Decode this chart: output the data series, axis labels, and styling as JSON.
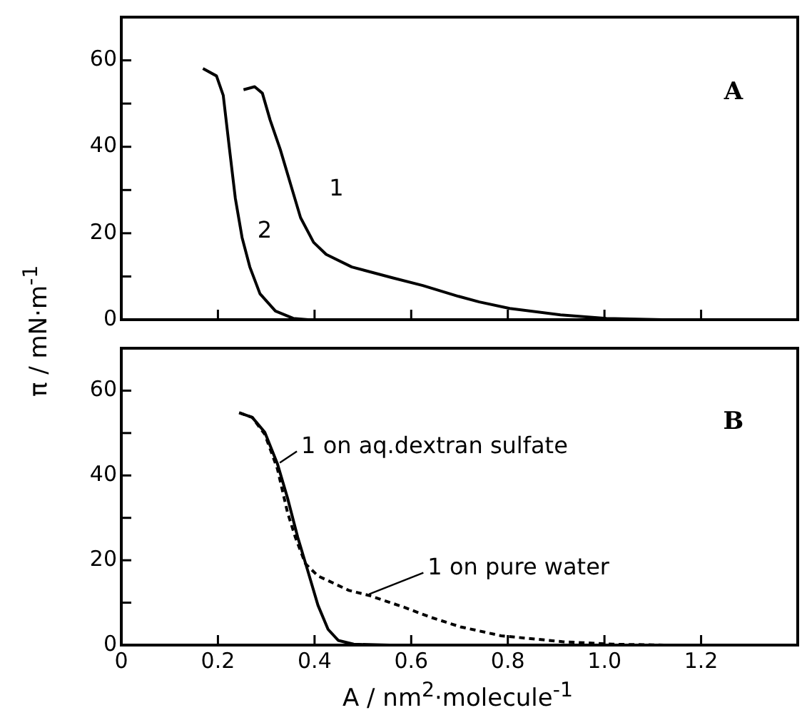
{
  "chart_data": [
    {
      "type": "line",
      "ylabel": "π / mN·m$^{-1}$",
      "xlim": [
        0,
        1.4
      ],
      "ylim": [
        0,
        70
      ],
      "xticks": [
        {
          "value": 0,
          "label": null
        },
        {
          "value": 0.2,
          "label": null
        },
        {
          "value": 0.4,
          "label": null
        },
        {
          "value": 0.6,
          "label": null
        },
        {
          "value": 0.8,
          "label": null
        },
        {
          "value": 1,
          "label": null
        },
        {
          "value": 1.2,
          "label": null
        }
      ],
      "yticks": [
        0,
        {
          "value": 10,
          "label": null
        },
        20,
        {
          "value": 30,
          "label": null
        },
        40,
        {
          "value": 50,
          "label": null
        },
        60
      ],
      "tick_labels": "y",
      "legend": false,
      "grid": false,
      "marker": "none",
      "series": [
        {
          "color": "#000000",
          "line_style": "solid",
          "x": [
            0.253,
            0.276,
            0.292,
            0.308,
            0.329,
            0.35,
            0.371,
            0.398,
            0.424,
            0.477,
            0.561,
            0.624,
            0.698,
            0.741,
            0.804,
            0.909,
            1.004,
            1.12
          ],
          "values": [
            53.2,
            53.9,
            52.4,
            46.2,
            39.4,
            31.5,
            23.6,
            17.9,
            15.1,
            12.2,
            9.7,
            7.9,
            5.4,
            4.1,
            2.6,
            1.1,
            0.3,
            0
          ]
        },
        {
          "color": "#000000",
          "line_style": "solid",
          "x": [
            0.169,
            0.197,
            0.211,
            0.224,
            0.236,
            0.25,
            0.266,
            0.287,
            0.319,
            0.356,
            0.387
          ],
          "values": [
            58.1,
            56.4,
            51.9,
            39.4,
            28.1,
            19,
            12.2,
            6,
            2,
            0.3,
            0
          ]
        }
      ],
      "annotations": [
        "A",
        "1",
        "2"
      ]
    },
    {
      "type": "line",
      "xlabel": "A / nm$^{2}$·molecule$^{-1}$",
      "xlim": [
        0,
        1.4
      ],
      "ylim": [
        0,
        70
      ],
      "xticks": [
        0,
        0.2,
        0.4,
        0.6,
        0.8,
        {
          "value": 1,
          "label": "1.0"
        },
        1.2
      ],
      "yticks": [
        0,
        {
          "value": 10,
          "label": null
        },
        20,
        {
          "value": 30,
          "label": null
        },
        40,
        {
          "value": 50,
          "label": null
        },
        60
      ],
      "legend": false,
      "grid": false,
      "marker": "none",
      "series": [
        {
          "color": "#000000",
          "line_style": "solid",
          "x": [
            0.244,
            0.271,
            0.297,
            0.323,
            0.344,
            0.365,
            0.386,
            0.407,
            0.428,
            0.449,
            0.481,
            0.555
          ],
          "values": [
            54.8,
            53.7,
            50.2,
            42.8,
            34.7,
            25.5,
            17.5,
            9.4,
            3.7,
            1.1,
            0.2,
            0
          ]
        },
        {
          "color": "#000000",
          "line_style": "dashed",
          "x": [
            0.244,
            0.271,
            0.297,
            0.323,
            0.344,
            0.36,
            0.381,
            0.407,
            0.471,
            0.513,
            0.586,
            0.639,
            0.702,
            0.786,
            0.913,
            1.018,
            1.134
          ],
          "values": [
            54.8,
            53.7,
            49.7,
            41.6,
            31.3,
            25.5,
            19.2,
            16.3,
            12.9,
            11.7,
            8.9,
            6.6,
            4.3,
            2.2,
            0.8,
            0.2,
            0
          ]
        }
      ],
      "annotations": [
        "B",
        {
          "text": "1 on aq.dextran sulfate",
          "x": 0.328,
          "y": 43
        },
        {
          "text": "1 on pure water",
          "x": 0.513,
          "y": 12
        }
      ]
    }
  ]
}
